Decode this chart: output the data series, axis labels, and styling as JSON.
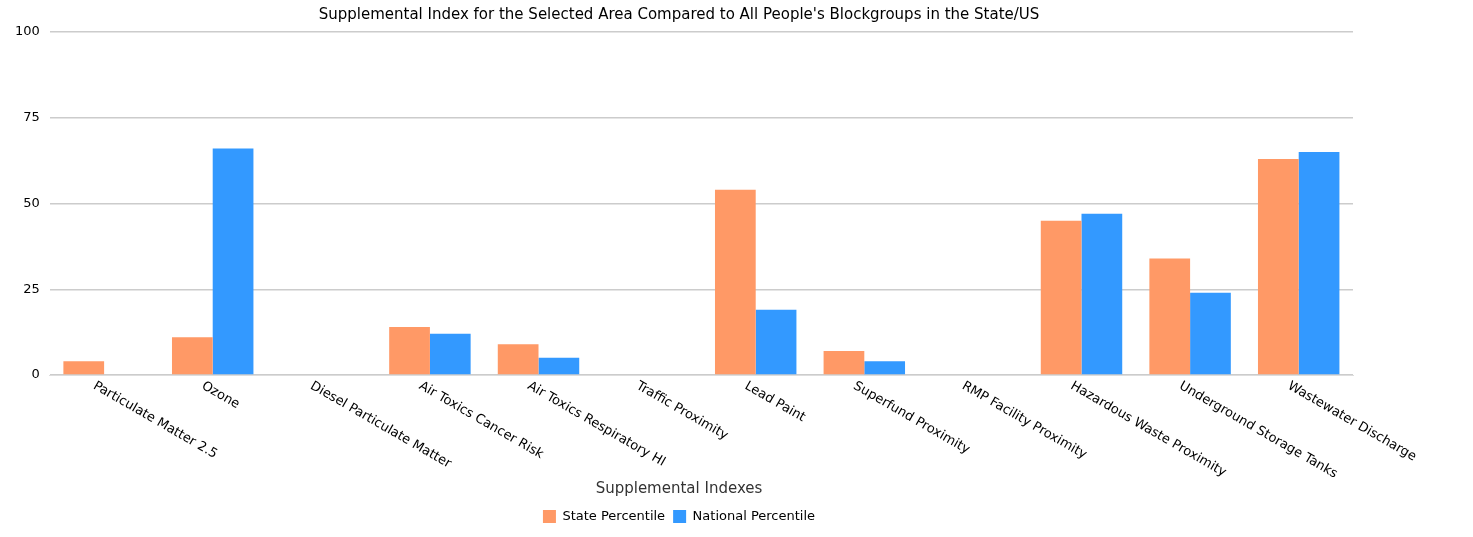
{
  "chart_data": {
    "type": "bar",
    "title": "Supplemental Index for the Selected Area Compared to All People's Blockgroups in the State/US",
    "categories": [
      "Particulate Matter 2.5",
      "Ozone",
      "Diesel Particulate Matter",
      "Air Toxics Cancer Risk",
      "Air Toxics Respiratory HI",
      "Traffic Proximity",
      "Lead Paint",
      "Superfund Proximity",
      "RMP Facility Proximity",
      "Hazardous Waste Proximity",
      "Underground Storage Tanks",
      "Wastewater Discharge"
    ],
    "series": [
      {
        "name": "State Percentile",
        "color": "#ff9966",
        "values": [
          4,
          11,
          0,
          14,
          9,
          0,
          54,
          7,
          0,
          45,
          34,
          63
        ]
      },
      {
        "name": "National Percentile",
        "color": "#3399ff",
        "values": [
          0,
          66,
          0,
          12,
          5,
          0,
          19,
          4,
          0,
          47,
          24,
          65
        ]
      }
    ],
    "ylim": [
      0,
      100
    ],
    "yticks": [
      0,
      25,
      50,
      75,
      100
    ],
    "grid": "y",
    "legend": "bottom",
    "legend_title": "Supplemental Indexes"
  }
}
